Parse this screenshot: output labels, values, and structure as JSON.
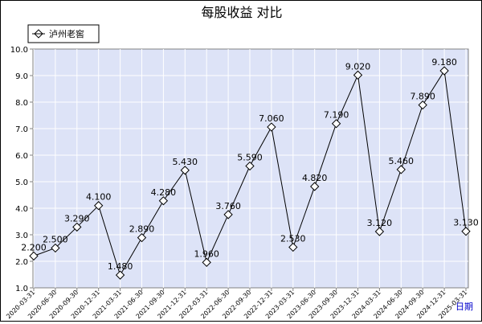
{
  "chart_data": {
    "type": "line",
    "title": "每股收益  对比",
    "xlabel": "日期",
    "ylabel": "",
    "ylim": [
      1.0,
      10.0
    ],
    "yticks": [
      "1.0",
      "2.0",
      "3.0",
      "4.0",
      "5.0",
      "6.0",
      "7.0",
      "8.0",
      "9.0",
      "10.0"
    ],
    "grid": true,
    "legend_position": "top-left",
    "categories": [
      "2020-03-31",
      "2020-06-30",
      "2020-09-30",
      "2020-12-31",
      "2021-03-31",
      "2021-06-30",
      "2021-09-30",
      "2021-12-31",
      "2022-03-31",
      "2022-06-30",
      "2022-09-30",
      "2022-12-31",
      "2023-03-31",
      "2023-06-30",
      "2023-09-30",
      "2023-12-31",
      "2024-03-31",
      "2024-06-30",
      "2024-09-30",
      "2024-12-31",
      "2025-03-31"
    ],
    "series": [
      {
        "name": "泸州老窖",
        "values": [
          2.2,
          2.5,
          3.29,
          4.1,
          1.48,
          2.89,
          4.28,
          5.43,
          1.96,
          3.76,
          5.59,
          7.06,
          2.53,
          4.82,
          7.19,
          9.02,
          3.12,
          5.46,
          7.89,
          9.18,
          3.13
        ],
        "labels": [
          "2.200",
          "2.500",
          "3.290",
          "4.100",
          "1.480",
          "2.890",
          "4.280",
          "5.430",
          "1.960",
          "3.760",
          "5.590",
          "7.060",
          "2.530",
          "4.820",
          "7.190",
          "9.020",
          "3.120",
          "5.460",
          "7.890",
          "9.180",
          "3.130"
        ],
        "color": "#000000"
      }
    ],
    "colors": {
      "plot_background": "#dde3f7",
      "grid": "#ffffff",
      "axis": "#808080",
      "xlabel": "#0000cc"
    }
  }
}
